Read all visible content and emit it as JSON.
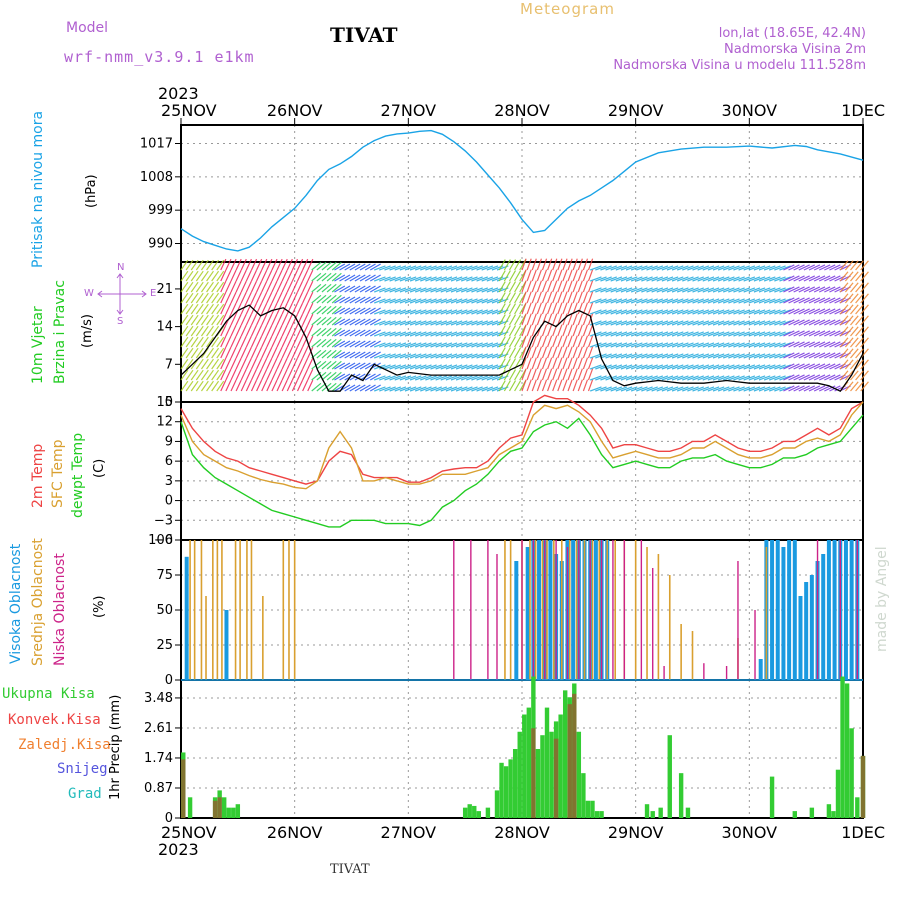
{
  "header": {
    "model_label": "Model",
    "model_name": "wrf-nmm_v3.9.1 e1km",
    "title": "TIVAT",
    "meteogram": "Meteogram",
    "lonlat": "lon,lat (18.65E, 42.4N)",
    "elev": "Nadmorska Visina 2m",
    "elev_model": "Nadmorska Visina u modelu 111.528m",
    "year_top": "2023",
    "year_bottom": "2023",
    "footer_title": "TIVAT",
    "credit": "made by Angel"
  },
  "dates": [
    "25NOV",
    "26NOV",
    "27NOV",
    "28NOV",
    "29NOV",
    "30NOV",
    "1DEC"
  ],
  "panel_labels": {
    "pressure": [
      "Pritisak na nivou mora",
      "(hPa)"
    ],
    "wind": [
      "10m Vjetar",
      "Brzina i Pravac",
      "(m/s)"
    ],
    "wind_rose": {
      "n": "N",
      "w": "W",
      "e": "E",
      "s": "S"
    },
    "temp": [
      "2m Temp",
      "SFC Temp",
      "dewpt Temp",
      "(C)"
    ],
    "cloud": [
      "Visoka Oblacnost",
      "Srednja Oblacnost",
      "Niska Oblacnost",
      "(%)"
    ],
    "precip_axis": "1hr Precip (mm)",
    "precip_legend": [
      "Ukupna Kisa",
      "Konvek.Kisa",
      "Zaledj.Kisa",
      "Snijeg",
      "Grad"
    ]
  },
  "colors": {
    "pressure": "#1aa3e6",
    "wind_label": "#22cc22",
    "speed_line": "#000000",
    "gust_marks": "#ee4444",
    "temp2m": "#ee4444",
    "sfc": "#d9a030",
    "dewpt": "#22cc22",
    "cloud_high": "#1a9ae0",
    "cloud_mid": "#d9a030",
    "cloud_low": "#cc2288",
    "precip_total": "#33cc33",
    "precip_conv": "#ee4444",
    "precip_frz": "#f08030",
    "precip_snow": "#5555dd",
    "precip_hail": "#22bbbb",
    "purple_text": "#b060d0",
    "tan_text": "#e8c070"
  },
  "chart_data": [
    {
      "type": "line",
      "name": "pressure",
      "x_days": [
        0,
        0.1,
        0.2,
        0.3,
        0.4,
        0.5,
        0.6,
        0.7,
        0.8,
        0.9,
        1.0,
        1.1,
        1.2,
        1.3,
        1.4,
        1.5,
        1.6,
        1.7,
        1.8,
        1.9,
        2.0,
        2.1,
        2.2,
        2.3,
        2.4,
        2.5,
        2.6,
        2.7,
        2.8,
        2.9,
        3.0,
        3.1,
        3.2,
        3.3,
        3.4,
        3.5,
        3.6,
        3.7,
        3.8,
        3.9,
        4.0,
        4.2,
        4.4,
        4.6,
        4.8,
        5.0,
        5.2,
        5.4,
        5.5,
        5.6,
        5.8,
        6.0
      ],
      "values": [
        994,
        992,
        990.5,
        989.5,
        988.5,
        988,
        989,
        991.5,
        994.5,
        997,
        999.5,
        1003,
        1007,
        1010,
        1011.5,
        1013.5,
        1016,
        1017.8,
        1019,
        1019.6,
        1019.8,
        1020.3,
        1020.5,
        1019.5,
        1017.5,
        1015,
        1012,
        1008.5,
        1005,
        1001,
        996.5,
        993,
        993.5,
        996.5,
        999.5,
        1001.5,
        1003,
        1005,
        1007,
        1009.5,
        1012,
        1014.5,
        1015.5,
        1016,
        1016,
        1016.3,
        1015.8,
        1016.5,
        1016.2,
        1015.3,
        1014.2,
        1012.5
      ],
      "ylim": [
        985,
        1022
      ],
      "yticks": [
        990,
        999,
        1008,
        1017
      ]
    },
    {
      "type": "line",
      "name": "wind",
      "x_days": [
        0,
        0.1,
        0.2,
        0.3,
        0.4,
        0.5,
        0.6,
        0.7,
        0.8,
        0.9,
        1.0,
        1.1,
        1.2,
        1.3,
        1.4,
        1.5,
        1.6,
        1.7,
        1.8,
        1.9,
        2.0,
        2.2,
        2.4,
        2.6,
        2.8,
        3.0,
        3.1,
        3.2,
        3.3,
        3.4,
        3.5,
        3.6,
        3.7,
        3.8,
        3.9,
        4.0,
        4.2,
        4.4,
        4.6,
        4.8,
        5.0,
        5.2,
        5.4,
        5.5,
        5.6,
        5.7,
        5.8,
        5.9,
        6.0
      ],
      "speed": [
        5,
        7,
        9,
        12,
        15,
        17,
        18,
        16,
        17,
        17.5,
        16,
        12,
        6,
        2,
        2,
        5,
        4,
        7,
        6,
        5,
        5.5,
        5,
        5,
        5,
        5,
        7,
        12,
        15,
        14,
        16,
        17,
        16,
        8,
        4,
        3,
        3.5,
        4,
        3.5,
        3.5,
        4,
        3.5,
        3.5,
        3.5,
        3.5,
        3.5,
        3,
        2,
        5,
        9
      ],
      "ylim": [
        0,
        26
      ],
      "yticks": [
        0,
        7,
        14,
        21
      ]
    },
    {
      "type": "line",
      "name": "temperature",
      "x_days": [
        0,
        0.1,
        0.2,
        0.3,
        0.4,
        0.5,
        0.6,
        0.7,
        0.8,
        0.9,
        1.0,
        1.1,
        1.2,
        1.3,
        1.4,
        1.5,
        1.6,
        1.7,
        1.8,
        1.9,
        2.0,
        2.1,
        2.2,
        2.3,
        2.4,
        2.5,
        2.6,
        2.7,
        2.8,
        2.9,
        3.0,
        3.1,
        3.2,
        3.3,
        3.4,
        3.5,
        3.6,
        3.7,
        3.8,
        3.9,
        4.0,
        4.1,
        4.2,
        4.3,
        4.4,
        4.5,
        4.6,
        4.7,
        4.8,
        4.9,
        5.0,
        5.1,
        5.2,
        5.3,
        5.4,
        5.5,
        5.6,
        5.7,
        5.8,
        5.9,
        6.0
      ],
      "series": [
        {
          "name": "2m Temp",
          "values": [
            14,
            11,
            9,
            7.5,
            6.5,
            6,
            5,
            4.5,
            4,
            3.5,
            3,
            2.5,
            3,
            6,
            7.5,
            7,
            4,
            3.5,
            3.5,
            3.5,
            2.8,
            2.8,
            3.5,
            4.5,
            4.8,
            5,
            5,
            6,
            8,
            9.5,
            10,
            15,
            16,
            15.5,
            15.5,
            14.5,
            13,
            11,
            8,
            8.5,
            8.5,
            8,
            7.5,
            7.5,
            8,
            9,
            9,
            10,
            9,
            8,
            7.5,
            7.5,
            8,
            9,
            9,
            10,
            11,
            10,
            11,
            14,
            15
          ]
        },
        {
          "name": "SFC Temp",
          "values": [
            13,
            9,
            7,
            6,
            5,
            4.5,
            3.8,
            3.2,
            2.8,
            2.5,
            2,
            1.8,
            3,
            8,
            10.5,
            8,
            3,
            3,
            3.5,
            3,
            2.5,
            2.5,
            3,
            4,
            4,
            4,
            4.5,
            5,
            7,
            8,
            9,
            13,
            14.5,
            14,
            14.5,
            13.5,
            12,
            9,
            6.5,
            7,
            7.5,
            7,
            6.5,
            6.5,
            7,
            8,
            8,
            9,
            8,
            7,
            6.5,
            6.5,
            7,
            8,
            8,
            9,
            9.5,
            9,
            10,
            13,
            15
          ]
        },
        {
          "name": "dewpt Temp",
          "values": [
            12,
            7,
            5,
            3.5,
            2.5,
            1.5,
            0.5,
            -0.5,
            -1.5,
            -2,
            -2.5,
            -3,
            -3.5,
            -4,
            -4,
            -3,
            -3,
            -3,
            -3.5,
            -3.5,
            -3.5,
            -3.8,
            -3,
            -1,
            0,
            1.5,
            2.5,
            4,
            6,
            7.5,
            8,
            10.5,
            11.5,
            12,
            11,
            12.5,
            10,
            7,
            5,
            5.5,
            6,
            5.5,
            5,
            5,
            6,
            6.5,
            6.5,
            7,
            6,
            5.5,
            5,
            5,
            5.5,
            6.5,
            6.5,
            7,
            8,
            8.5,
            9,
            11,
            13
          ]
        }
      ],
      "ylim": [
        -6,
        15
      ],
      "yticks": [
        -6,
        -3,
        0,
        3,
        6,
        9,
        12,
        15
      ]
    },
    {
      "type": "bar",
      "name": "cloud_cover",
      "ylim": [
        0,
        100
      ],
      "yticks": [
        0,
        25,
        50,
        75,
        100
      ],
      "series": [
        {
          "name": "Visoka Oblacnost",
          "x_days": [
            0.05,
            0.4,
            2.95,
            3.05,
            3.1,
            3.15,
            3.2,
            3.25,
            3.3,
            3.35,
            3.4,
            3.45,
            3.5,
            3.55,
            3.6,
            3.65,
            3.7,
            3.75,
            5.1,
            5.15,
            5.2,
            5.25,
            5.3,
            5.35,
            5.4,
            5.45,
            5.5,
            5.55,
            5.6,
            5.65,
            5.7,
            5.75,
            5.8,
            5.85,
            5.9,
            5.95
          ],
          "values": [
            88,
            50,
            85,
            95,
            100,
            100,
            100,
            100,
            90,
            85,
            100,
            100,
            100,
            100,
            100,
            100,
            100,
            100,
            15,
            100,
            100,
            100,
            95,
            100,
            100,
            60,
            70,
            75,
            85,
            90,
            100,
            100,
            100,
            100,
            100,
            100
          ]
        },
        {
          "name": "Srednja Oblacnost",
          "x_days": [
            0.08,
            0.12,
            0.18,
            0.22,
            0.28,
            0.32,
            0.36,
            0.48,
            0.52,
            0.58,
            0.62,
            0.72,
            0.9,
            0.95,
            1.0,
            2.85,
            2.9,
            3.0,
            3.07,
            3.12,
            3.18,
            3.22,
            3.28,
            3.35,
            3.42,
            3.48,
            3.55,
            3.62,
            3.68,
            3.75,
            3.82,
            3.9,
            4.0,
            4.1,
            4.2,
            4.3,
            4.4,
            4.5,
            4.9,
            5.15
          ],
          "values": [
            100,
            100,
            100,
            60,
            100,
            100,
            100,
            100,
            100,
            100,
            100,
            60,
            100,
            100,
            100,
            100,
            100,
            100,
            100,
            100,
            100,
            100,
            100,
            100,
            100,
            100,
            100,
            100,
            100,
            100,
            100,
            100,
            100,
            95,
            90,
            75,
            40,
            35,
            30,
            95
          ]
        },
        {
          "name": "Niska Oblacnost",
          "x_days": [
            2.4,
            2.55,
            2.7,
            2.78,
            3.0,
            3.1,
            3.2,
            3.3,
            3.4,
            3.5,
            3.6,
            3.7,
            3.8,
            3.9,
            4.05,
            4.15,
            4.25,
            4.6,
            4.8,
            4.9,
            5.05,
            5.6,
            5.8,
            5.95
          ],
          "values": [
            100,
            100,
            100,
            90,
            100,
            100,
            100,
            100,
            95,
            100,
            100,
            100,
            100,
            100,
            100,
            80,
            10,
            12,
            10,
            85,
            50,
            100,
            100,
            100
          ]
        }
      ]
    },
    {
      "type": "bar",
      "name": "precipitation",
      "ylim": [
        0,
        4.0
      ],
      "yticks": [
        0,
        0.87,
        1.74,
        2.61,
        3.48
      ],
      "series": [
        {
          "name": "Ukupna Kisa",
          "x_days": [
            0.02,
            0.08,
            0.3,
            0.34,
            0.38,
            0.42,
            0.46,
            0.5,
            2.5,
            2.54,
            2.58,
            2.62,
            2.7,
            2.78,
            2.82,
            2.86,
            2.9,
            2.94,
            2.98,
            3.02,
            3.06,
            3.1,
            3.14,
            3.18,
            3.22,
            3.26,
            3.3,
            3.34,
            3.38,
            3.42,
            3.46,
            3.5,
            3.54,
            3.58,
            3.62,
            3.66,
            3.7,
            4.1,
            4.15,
            4.22,
            4.3,
            4.4,
            4.46,
            5.2,
            5.4,
            5.55,
            5.7,
            5.74,
            5.78,
            5.82,
            5.86,
            5.9,
            5.95,
            6.0
          ],
          "values": [
            1.9,
            0.6,
            0.6,
            0.8,
            0.6,
            0.3,
            0.3,
            0.4,
            0.3,
            0.4,
            0.35,
            0.2,
            0.3,
            0.8,
            1.6,
            1.5,
            1.7,
            2.0,
            2.5,
            3.0,
            3.2,
            4.1,
            2.0,
            2.4,
            3.2,
            2.5,
            2.8,
            3.0,
            3.7,
            3.5,
            3.9,
            2.5,
            1.3,
            0.5,
            0.5,
            0.2,
            0.2,
            0.4,
            0.2,
            0.3,
            2.4,
            1.3,
            0.3,
            1.2,
            0.2,
            0.3,
            0.4,
            0.2,
            1.4,
            4.1,
            3.9,
            2.6,
            0.6,
            1.8
          ]
        },
        {
          "name": "Konvek.Kisa",
          "x_days": [
            0.02,
            0.3,
            0.34,
            3.1,
            3.3,
            3.42,
            3.46,
            6.0
          ],
          "values": [
            1.7,
            0.5,
            0.6,
            2.6,
            2.3,
            3.3,
            3.6,
            1.8
          ]
        }
      ]
    }
  ]
}
